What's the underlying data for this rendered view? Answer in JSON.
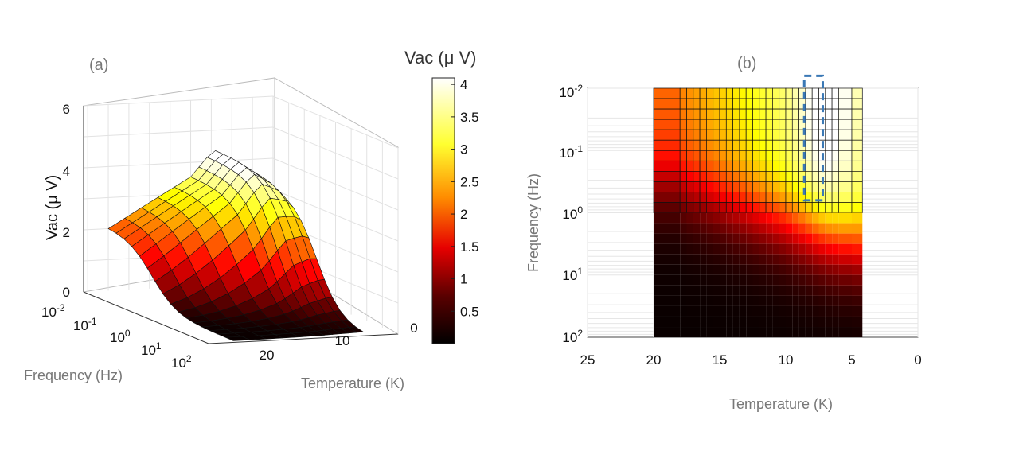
{
  "colors": {
    "hot_dark": "#000000",
    "hot_red": "#e60000",
    "hot_orange": "#ff8c00",
    "hot_yellow": "#ffff40",
    "hot_white": "#ffffff",
    "highlight_box": "#3a78b5"
  },
  "chart_data": [
    {
      "type": "surface",
      "panel_label": "(a)",
      "zlabel": "Vac (μ V)",
      "xlabel": "Frequency (Hz)",
      "ylabel": "Temperature (K)",
      "z_ticks": [
        "0",
        "2",
        "4",
        "6"
      ],
      "z_range": [
        0,
        6
      ],
      "freq_ticks": [
        {
          "base": "10",
          "exp": "-2"
        },
        {
          "base": "10",
          "exp": "-1"
        },
        {
          "base": "10",
          "exp": "0"
        },
        {
          "base": "10",
          "exp": "1"
        },
        {
          "base": "10",
          "exp": "2"
        }
      ],
      "temp_ticks": [
        "20",
        "10",
        "0"
      ],
      "freq_range_log10": [
        -2,
        2
      ],
      "temp_range": [
        0,
        23
      ],
      "temperatures": [
        20,
        18,
        16,
        14,
        12,
        10,
        9,
        8,
        7,
        6,
        5,
        4.2
      ],
      "frequencies_log10": [
        -2,
        -1.5,
        -1,
        -0.5,
        0,
        0.5,
        1,
        1.5,
        2
      ],
      "vac_at_lowest_frequency": [
        2.0,
        2.3,
        2.6,
        2.9,
        3.2,
        3.5,
        3.8,
        4.1,
        4.3,
        4.1,
        3.9,
        3.6
      ]
    },
    {
      "type": "heatmap",
      "panel_label": "(b)",
      "xlabel": "Temperature (K)",
      "ylabel": "Frequency (Hz)",
      "x_ticks": [
        "25",
        "20",
        "15",
        "10",
        "5",
        "0"
      ],
      "x_range": [
        25,
        0
      ],
      "y_ticks": [
        {
          "base": "10",
          "exp": "-2"
        },
        {
          "base": "10",
          "exp": "-1"
        },
        {
          "base": "10",
          "exp": "0"
        },
        {
          "base": "10",
          "exp": "1"
        },
        {
          "base": "10",
          "exp": "2"
        }
      ],
      "y_range_log10": [
        -2,
        2
      ],
      "temperatures": [
        20,
        18,
        17.5,
        17,
        16.5,
        16,
        15.5,
        15,
        14.5,
        14,
        13.5,
        13,
        12.5,
        12,
        11.5,
        11,
        10.5,
        10,
        9.5,
        9,
        8.5,
        8,
        7.5,
        7,
        6.5,
        6,
        5,
        4.2
      ],
      "highlight": {
        "temp_from": 8.6,
        "temp_to": 7.2,
        "freq_log10_from": -2.2,
        "freq_log10_to": -0.2
      }
    }
  ],
  "colorbar": {
    "title": "Vac (μ V)",
    "ticks": [
      "0.5",
      "1",
      "1.5",
      "2",
      "2.5",
      "3",
      "3.5",
      "4"
    ],
    "tick_values": [
      0.5,
      1,
      1.5,
      2,
      2.5,
      3,
      3.5,
      4
    ],
    "range": [
      0,
      4.1
    ]
  }
}
